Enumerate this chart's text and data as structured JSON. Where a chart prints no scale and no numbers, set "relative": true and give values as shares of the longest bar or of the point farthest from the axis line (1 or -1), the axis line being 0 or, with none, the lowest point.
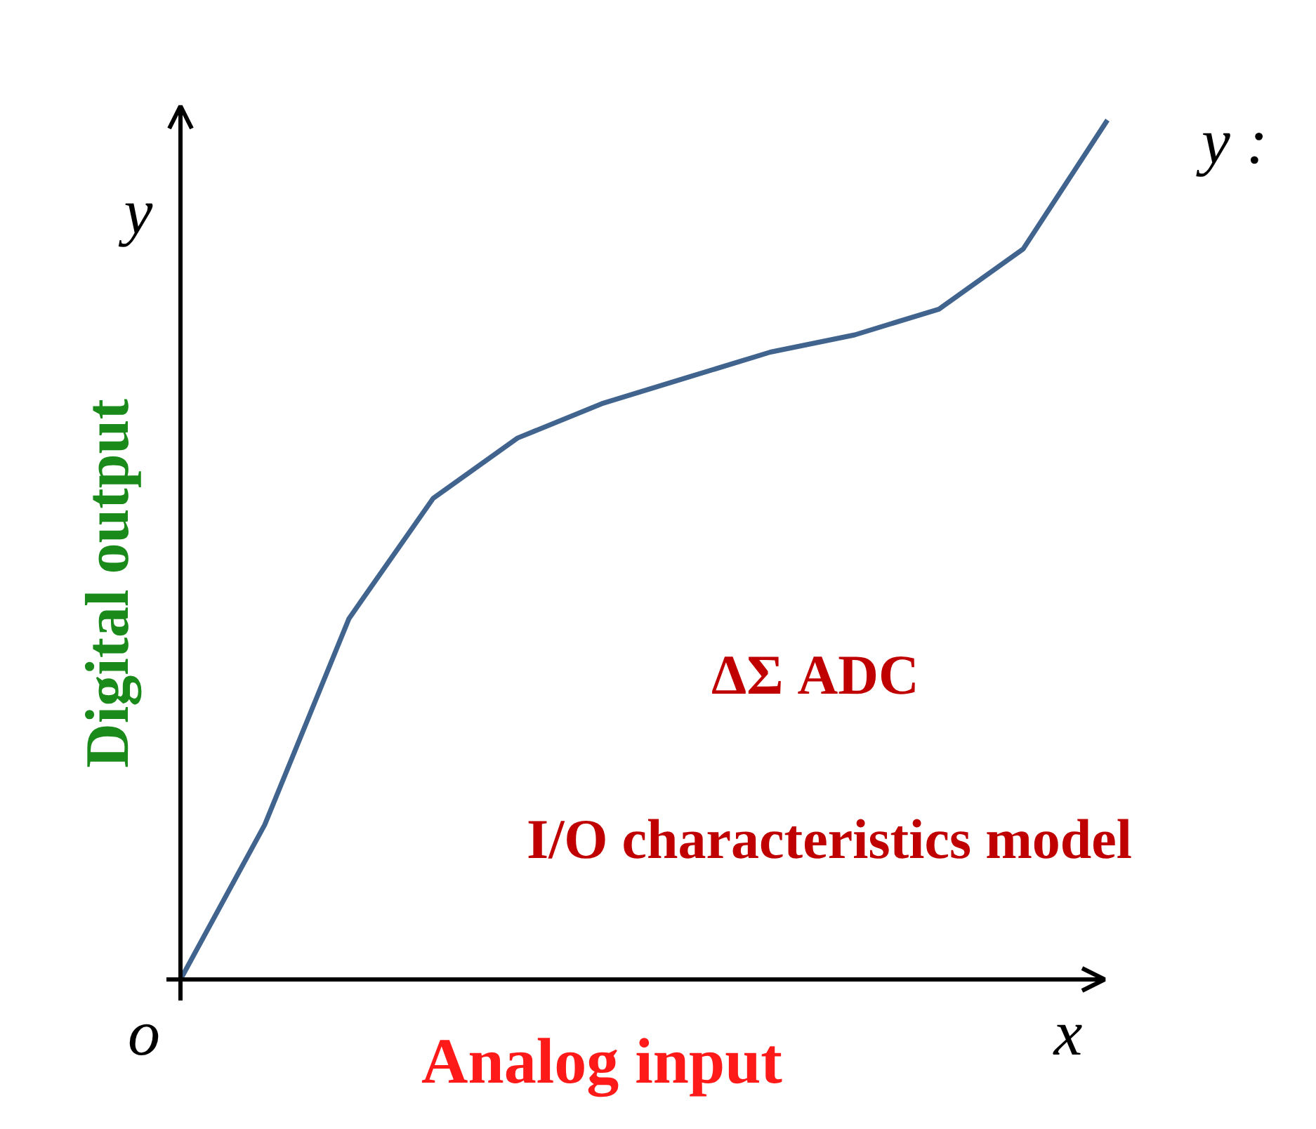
{
  "chart_data": {
    "type": "line",
    "relative": true,
    "xlabel": "Analog input",
    "ylabel": "Digital output",
    "categories": [
      null,
      null,
      null,
      null,
      null,
      null,
      null,
      null,
      null,
      null,
      null,
      null
    ],
    "series": [
      {
        "color": "#41648f",
        "values": [
          0,
          0.18,
          0.42,
          0.56,
          0.63,
          0.67,
          0.7,
          0.73,
          0.75,
          0.78,
          0.85,
          1.0
        ]
      }
    ],
    "annotations": [
      "ΔΣ ADC",
      "I/O characteristics model",
      "y",
      "x",
      "o",
      "y :"
    ]
  }
}
